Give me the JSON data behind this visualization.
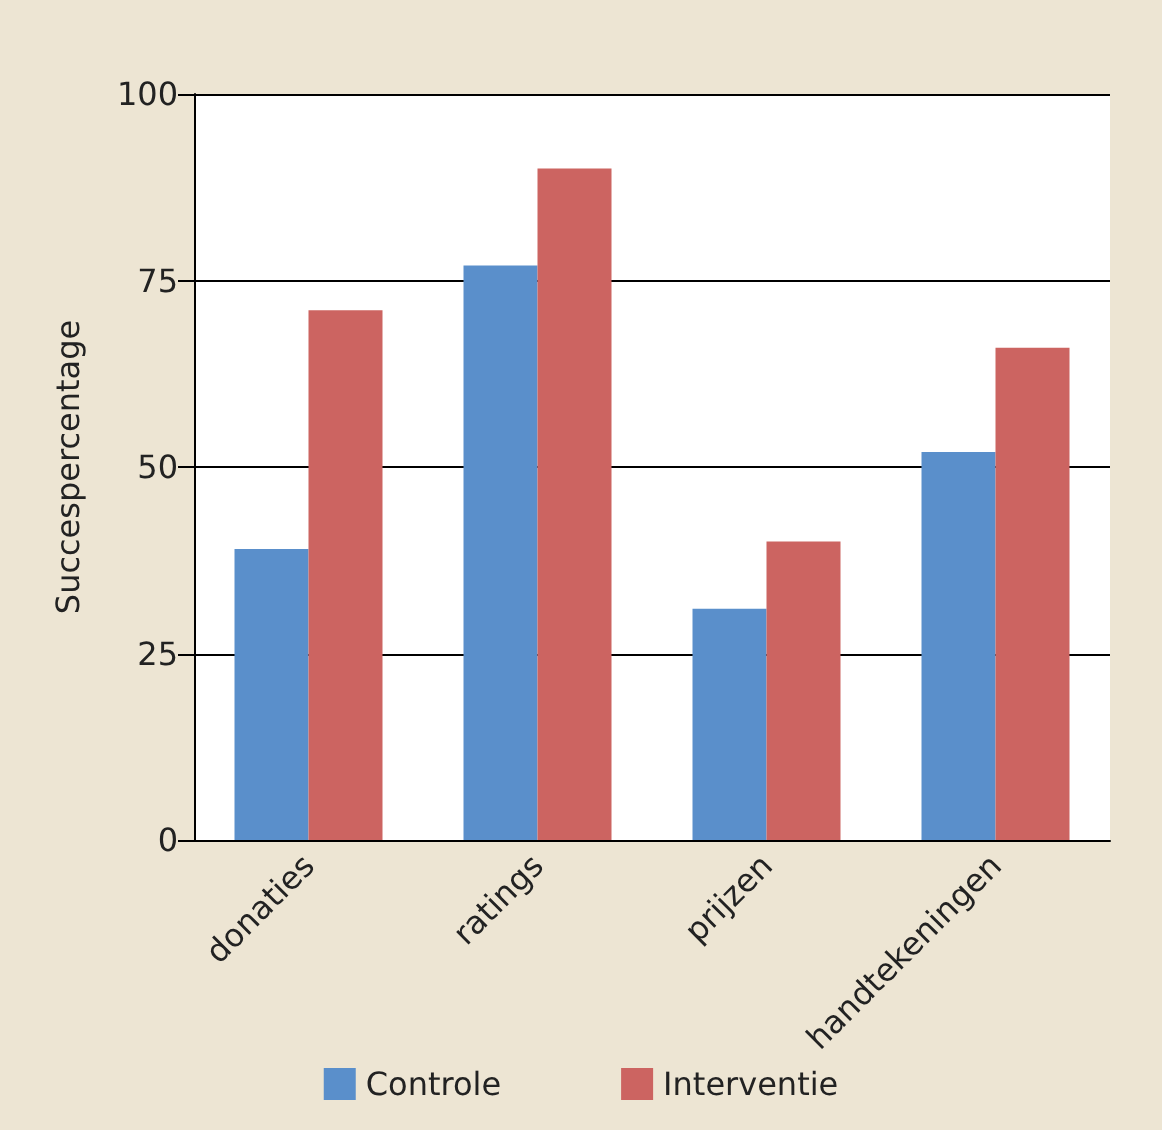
{
  "chart_data": {
    "type": "bar",
    "ylabel": "Succespercentage",
    "categories": [
      "donaties",
      "ratings",
      "prijzen",
      "handtekeningen"
    ],
    "series": [
      {
        "name": "Controle",
        "color": "#5a8fcb",
        "values": [
          39,
          77,
          31,
          52
        ]
      },
      {
        "name": "Interventie",
        "color": "#cc6461",
        "values": [
          71,
          90,
          40,
          66
        ]
      }
    ],
    "ylim": [
      0,
      100
    ],
    "yticks": [
      0,
      25,
      50,
      75,
      100
    ],
    "grid": "y",
    "legend": "bottom"
  }
}
